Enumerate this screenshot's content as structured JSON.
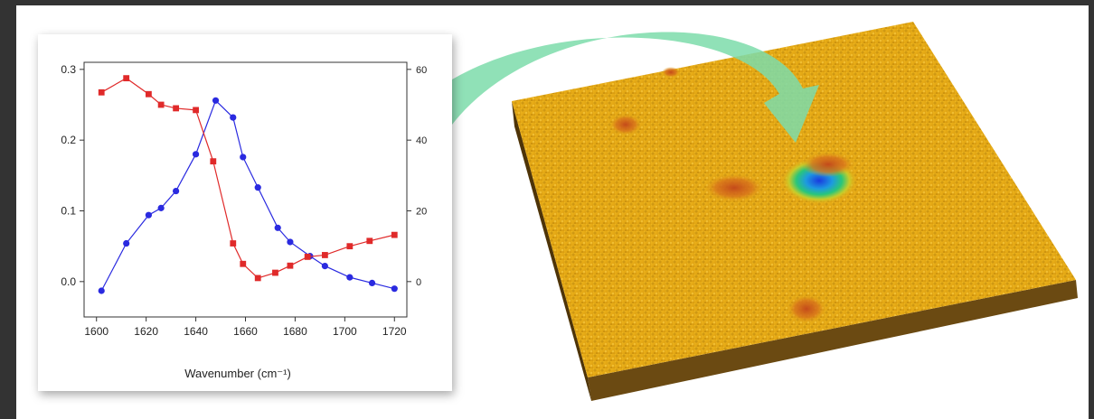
{
  "chart_data": {
    "type": "line",
    "xlabel": "Wavenumber (cm⁻¹)",
    "x_ticks": [
      1600,
      1620,
      1640,
      1660,
      1680,
      1700,
      1720
    ],
    "xlim": [
      1595,
      1725
    ],
    "left_axis": {
      "ylim": [
        -0.05,
        0.31
      ],
      "ticks": [
        "0.0",
        "0.1",
        "0.2",
        "0.3"
      ],
      "tick_values": [
        0.0,
        0.1,
        0.2,
        0.3
      ]
    },
    "right_axis": {
      "ylim": [
        -10,
        62
      ],
      "ticks": [
        "0",
        "20",
        "40",
        "60"
      ],
      "tick_values": [
        0,
        20,
        40,
        60
      ]
    },
    "series": [
      {
        "axis": "left",
        "color": "#2a2ae0",
        "marker": "circle",
        "x": [
          1602,
          1612,
          1621,
          1626,
          1632,
          1640,
          1648,
          1655,
          1659,
          1665,
          1673,
          1678,
          1686,
          1692,
          1702,
          1711,
          1720
        ],
        "values": [
          -0.013,
          0.054,
          0.094,
          0.104,
          0.128,
          0.18,
          0.256,
          0.232,
          0.176,
          0.133,
          0.076,
          0.056,
          0.036,
          0.022,
          0.006,
          -0.002,
          -0.01
        ]
      },
      {
        "axis": "right",
        "color": "#e02a2a",
        "marker": "square",
        "x": [
          1602,
          1612,
          1621,
          1626,
          1632,
          1640,
          1647,
          1655,
          1659,
          1665,
          1672,
          1678,
          1685,
          1692,
          1702,
          1710,
          1720
        ],
        "values": [
          53.5,
          57.5,
          53,
          50,
          49,
          48.5,
          34,
          10.8,
          5,
          1,
          2.5,
          4.5,
          7,
          7.5,
          10,
          11.5,
          13.2
        ]
      }
    ],
    "legend": "none",
    "grid": false
  },
  "image": {
    "description_icon": "afm-surface-image",
    "arrow_color": "#7ddcaa",
    "surface_color": "#e5a915"
  },
  "colors": {
    "frame": "#333333",
    "background": "#ffffff"
  }
}
